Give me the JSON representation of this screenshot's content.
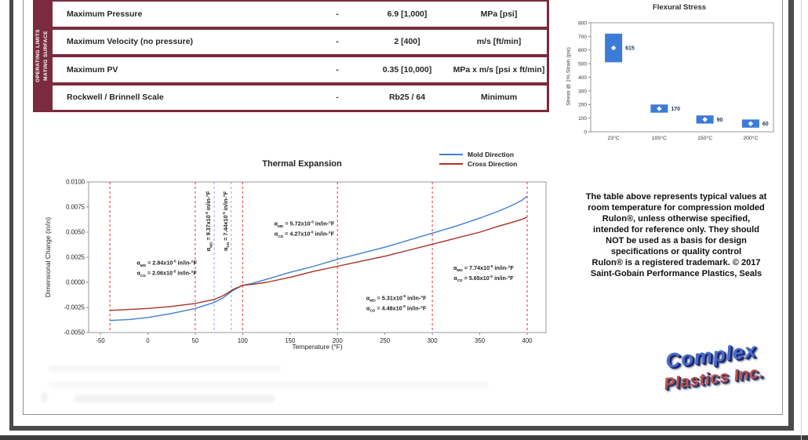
{
  "document": {
    "operating_table": {
      "accent_color": "#7a2b3d",
      "sidebar": {
        "line1": "OPERATING LIMITS",
        "line2": "MATING SURFACE"
      },
      "rows": [
        {
          "property": "Maximum Pressure",
          "dash": "-",
          "value": "6.9 [1,000]",
          "units": "MPa [psi]"
        },
        {
          "property": "Maximum Velocity (no pressure)",
          "dash": "-",
          "value": "2 [400]",
          "units": "m/s [ft/min]"
        },
        {
          "property": "Maximum PV",
          "dash": "-",
          "value": "0.35 [10,000]",
          "units": "MPa x m/s [psi x ft/min]"
        },
        {
          "property": "Rockwell / Brinnell Scale",
          "dash": "-",
          "value": "Rb25 / 64",
          "units": "Minimum"
        }
      ]
    },
    "note": {
      "lines": [
        "The table above represents typical values at",
        "room temperature for compression molded",
        "Rulon®, unless otherwise specified,",
        "intended for reference only. They should",
        "NOT be used as a basis for design",
        "specifications or quality control",
        "Rulon® is a registered trademark. © 2017",
        "Saint-Gobain Performance Plastics, Seals"
      ]
    },
    "logo": {
      "line1": "Complex",
      "line2": "Plastics Inc."
    }
  },
  "chart_data": [
    {
      "id": "flexural-stress",
      "type": "bar",
      "title": "Flexural Stress",
      "xlabel": "",
      "ylabel": "Stress @ 1% Strain (psi)",
      "ylim": [
        0,
        800
      ],
      "ytick_step": 100,
      "grid": false,
      "categories": [
        "23°C",
        "100°C",
        "150°C",
        "200°C"
      ],
      "values": [
        615,
        170,
        90,
        60
      ],
      "ranges": [
        [
          510,
          720
        ],
        [
          140,
          200
        ],
        [
          60,
          120
        ],
        [
          30,
          90
        ]
      ],
      "bar_color": "#3d7bd8",
      "marker": "white-diamond",
      "value_label_color": "#17365d"
    },
    {
      "id": "thermal-expansion",
      "type": "line",
      "title": "Thermal Expansion",
      "xlabel": "Temperature (°F)",
      "ylabel": "Dimensional Change (in/in)",
      "xlim": [
        -50,
        400
      ],
      "ylim": [
        -0.005,
        0.01
      ],
      "grid": false,
      "legend_position": "top-right",
      "xticks": [
        -50,
        0,
        50,
        100,
        150,
        200,
        250,
        300,
        350,
        400
      ],
      "yticks": [
        "0.0100",
        "0.0075",
        "0.0050",
        "0.0025",
        "0.0000",
        "-0.0025",
        "-0.0050"
      ],
      "red_dashed_x": [
        -40,
        50,
        100,
        200,
        300,
        400
      ],
      "blue_dashed_x": [
        70,
        88
      ],
      "dashed_red_color": "#e84545",
      "dashed_blue_color": "#8ea6de",
      "series": [
        {
          "name": "Mold Direction",
          "color": "#3f7fd4",
          "points": [
            [
              -40,
              -0.0038
            ],
            [
              -20,
              -0.0037
            ],
            [
              0,
              -0.0035
            ],
            [
              25,
              -0.0031
            ],
            [
              50,
              -0.0026
            ],
            [
              60,
              -0.0023
            ],
            [
              70,
              -0.002
            ],
            [
              80,
              -0.0015
            ],
            [
              90,
              -0.0008
            ],
            [
              100,
              -0.0003
            ],
            [
              110,
              -0.0001
            ],
            [
              125,
              0.0003
            ],
            [
              150,
              0.001
            ],
            [
              175,
              0.0016
            ],
            [
              200,
              0.0023
            ],
            [
              225,
              0.0029
            ],
            [
              250,
              0.0035
            ],
            [
              275,
              0.0042
            ],
            [
              300,
              0.0049
            ],
            [
              325,
              0.0056
            ],
            [
              350,
              0.0064
            ],
            [
              370,
              0.0071
            ],
            [
              385,
              0.0077
            ],
            [
              395,
              0.0082
            ],
            [
              400,
              0.0086
            ]
          ]
        },
        {
          "name": "Cross Direction",
          "color": "#a93226",
          "points": [
            [
              -40,
              -0.0028
            ],
            [
              -20,
              -0.0027
            ],
            [
              0,
              -0.0026
            ],
            [
              25,
              -0.0024
            ],
            [
              50,
              -0.0021
            ],
            [
              60,
              -0.0019
            ],
            [
              70,
              -0.0017
            ],
            [
              80,
              -0.0013
            ],
            [
              90,
              -0.0007
            ],
            [
              100,
              -0.0003
            ],
            [
              110,
              -0.0002
            ],
            [
              125,
              0.0
            ],
            [
              150,
              0.0005
            ],
            [
              175,
              0.0011
            ],
            [
              200,
              0.0016
            ],
            [
              225,
              0.0021
            ],
            [
              250,
              0.0026
            ],
            [
              275,
              0.0032
            ],
            [
              300,
              0.0038
            ],
            [
              325,
              0.0044
            ],
            [
              350,
              0.005
            ],
            [
              370,
              0.0056
            ],
            [
              385,
              0.006
            ],
            [
              395,
              0.0063
            ],
            [
              400,
              0.0065
            ]
          ]
        }
      ],
      "annotations": [
        {
          "x": 20,
          "y": 0.0014,
          "rotated": false,
          "lines": [
            {
              "symbol": "α",
              "sub": "MD",
              "value": "2.84",
              "base": "x10",
              "exp": "-5",
              "unit": "in/in-°F"
            },
            {
              "symbol": "α",
              "sub": "CD",
              "value": "2.06",
              "base": "x10",
              "exp": "-5",
              "unit": "in/in-°F"
            }
          ]
        },
        {
          "x": 66,
          "y": 0.0061,
          "rotated": true,
          "lines": [
            {
              "symbol": "α",
              "sub": "MD",
              "value": "9.37",
              "base": "x10",
              "exp": "-5",
              "unit": "in/in-°F"
            }
          ]
        },
        {
          "x": 84,
          "y": 0.0061,
          "rotated": true,
          "lines": [
            {
              "symbol": "α",
              "sub": "CD",
              "value": "7.44",
              "base": "x10",
              "exp": "-5",
              "unit": "in/in-°F"
            }
          ]
        },
        {
          "x": 165,
          "y": 0.0053,
          "rotated": false,
          "lines": [
            {
              "symbol": "α",
              "sub": "MD",
              "value": "5.72",
              "base": "x10",
              "exp": "-5",
              "unit": "in/in-°F"
            },
            {
              "symbol": "α",
              "sub": "CD",
              "value": "4.27",
              "base": "x10",
              "exp": "-5",
              "unit": "in/in-°F"
            }
          ]
        },
        {
          "x": 262,
          "y": -0.0021,
          "rotated": false,
          "lines": [
            {
              "symbol": "α",
              "sub": "MD",
              "value": "5.31",
              "base": "x10",
              "exp": "-5",
              "unit": "in/in-°F"
            },
            {
              "symbol": "α",
              "sub": "CD",
              "value": "4.48",
              "base": "x10",
              "exp": "-5",
              "unit": "in/in-°F"
            }
          ]
        },
        {
          "x": 354,
          "y": 0.0009,
          "rotated": false,
          "lines": [
            {
              "symbol": "α",
              "sub": "MD",
              "value": "7.74",
              "base": "x10",
              "exp": "-5",
              "unit": "in/in-°F"
            },
            {
              "symbol": "α",
              "sub": "CD",
              "value": "5.65",
              "base": "x10",
              "exp": "-5",
              "unit": "in/in-°F"
            }
          ]
        }
      ]
    }
  ]
}
